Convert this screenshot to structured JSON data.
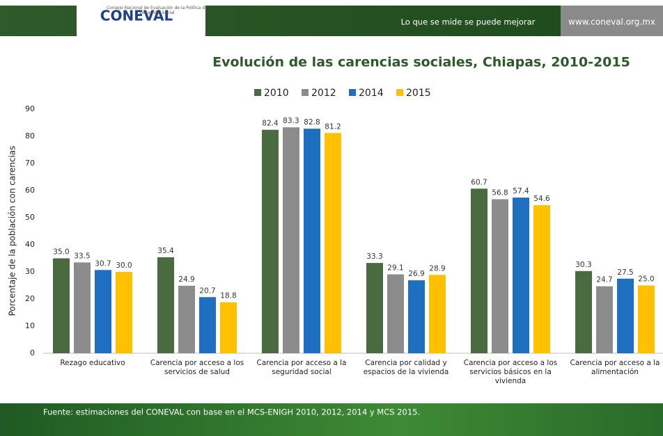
{
  "header": {
    "logo": "CONEVAL",
    "logo_subtitle": "Consejo Nacional de Evaluación de la Política de Desarrollo Social",
    "slogan": "Lo que se mide se puede mejorar",
    "url": "www.coneval.org.mx"
  },
  "chart_data": {
    "type": "bar",
    "title": "Evolución de las carencias sociales, Chiapas, 2010-2015",
    "ylabel": "Porcentaje de la población con carencias",
    "categories": [
      "Rezago educativo",
      "Carencia por acceso a los servicios de salud",
      "Carencia por acceso a la seguridad social",
      "Carencia por calidad y espacios de la vivienda",
      "Carencia por acceso a los servicios básicos en la vivienda",
      "Carencia por acceso a la alimentación"
    ],
    "series": [
      {
        "name": "2010",
        "color": "#4a6b3f",
        "values": [
          35.0,
          35.4,
          82.4,
          33.3,
          60.7,
          30.3
        ],
        "value_labels": [
          "35.0",
          "35.4",
          "82.4",
          "33.3",
          "60.7",
          "30.3"
        ]
      },
      {
        "name": "2012",
        "color": "#8c8c8c",
        "values": [
          33.5,
          24.9,
          83.3,
          29.1,
          56.8,
          24.7
        ],
        "value_labels": [
          "33.5",
          "24.9",
          "83.3",
          "29.1",
          "56.8",
          "24.7"
        ]
      },
      {
        "name": "2014",
        "color": "#1f6fc1",
        "values": [
          30.7,
          20.7,
          82.8,
          26.9,
          57.4,
          27.5
        ],
        "value_labels": [
          "30.7",
          "20.7",
          "82.8",
          "26.9",
          "57.4",
          "27.5"
        ]
      },
      {
        "name": "2015",
        "color": "#ffc000",
        "values": [
          30.0,
          18.8,
          81.2,
          28.9,
          54.6,
          25.0
        ],
        "value_labels": [
          "30.0",
          "18.8",
          "81.2",
          "28.9",
          "54.6",
          "25.0"
        ]
      }
    ],
    "ylim": [
      0,
      90
    ],
    "yticks": [
      0,
      10,
      20,
      30,
      40,
      50,
      60,
      70,
      80,
      90
    ],
    "grid": false,
    "legend": "top"
  },
  "footer": {
    "source": "Fuente: estimaciones del CONEVAL con base en el MCS-ENIGH 2010, 2012, 2014 y MCS 2015."
  }
}
